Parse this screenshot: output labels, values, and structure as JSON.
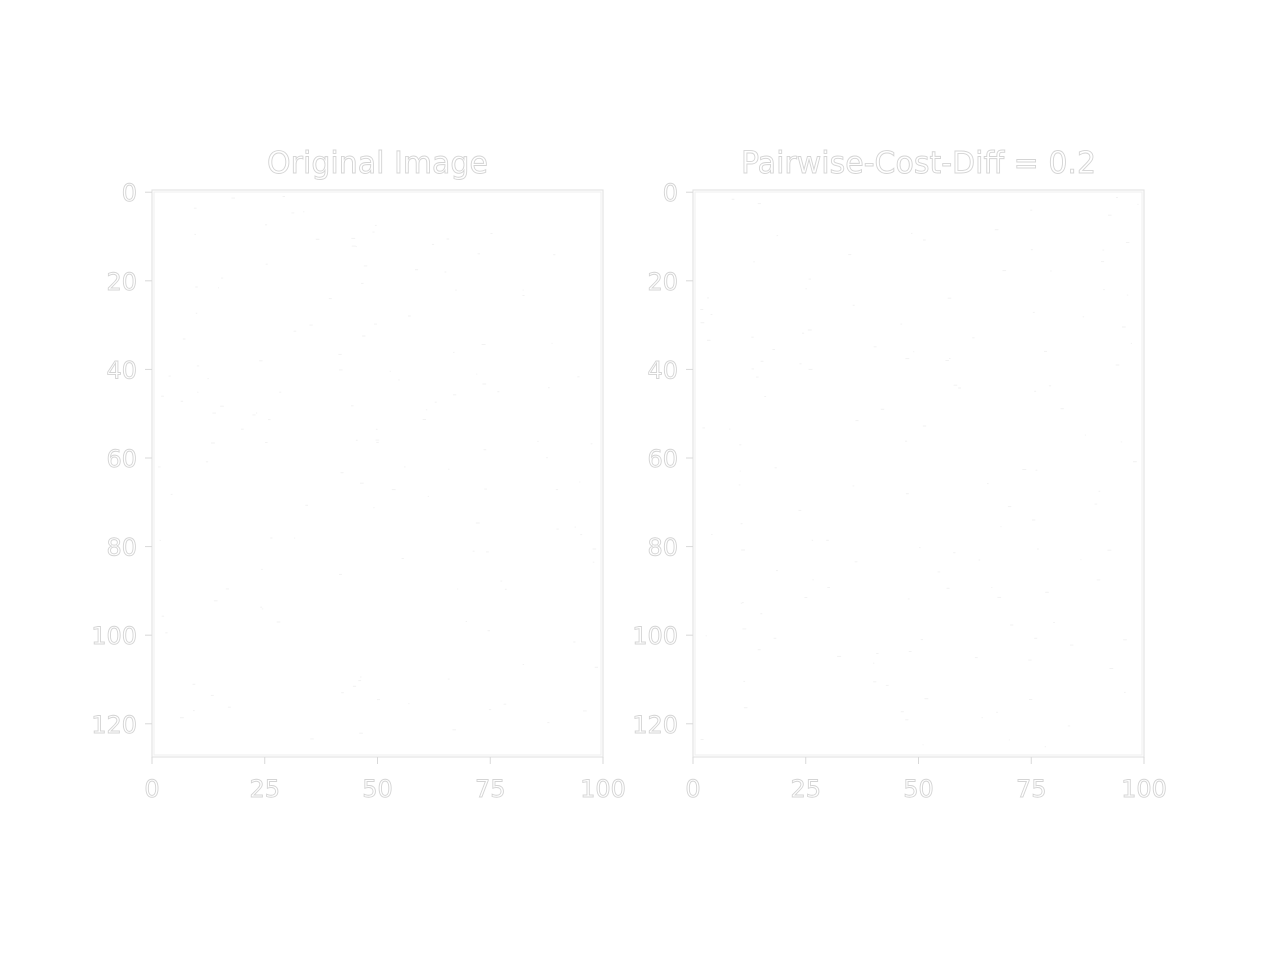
{
  "chart_data": [
    {
      "type": "heatmap",
      "title": "Original Image",
      "xlabel": "",
      "ylabel": "",
      "xlim": [
        0,
        100
      ],
      "ylim": [
        127.5,
        -0.5
      ],
      "y_axis_inverted": true,
      "xticks": [
        0,
        25,
        50,
        75,
        100
      ],
      "yticks": [
        0,
        20,
        40,
        60,
        80,
        100,
        120
      ],
      "xtick_labels": [
        "0",
        "25",
        "50",
        "75",
        "100"
      ],
      "ytick_labels": [
        "0",
        "20",
        "40",
        "60",
        "80",
        "100",
        "120"
      ],
      "grid": false,
      "legend": "none",
      "content": "near-white image, pixel values not readable"
    },
    {
      "type": "heatmap",
      "title": "Pairwise-Cost-Diff = 0.2",
      "xlabel": "",
      "ylabel": "",
      "xlim": [
        0,
        100
      ],
      "ylim": [
        127.5,
        -0.5
      ],
      "y_axis_inverted": true,
      "xticks": [
        0,
        25,
        50,
        75,
        100
      ],
      "yticks": [
        0,
        20,
        40,
        60,
        80,
        100,
        120
      ],
      "xtick_labels": [
        "0",
        "25",
        "50",
        "75",
        "100"
      ],
      "ytick_labels": [
        "0",
        "20",
        "40",
        "60",
        "80",
        "100",
        "120"
      ],
      "grid": false,
      "legend": "none",
      "content": "near-white image, pixel values not readable"
    }
  ],
  "colors": {
    "background": "#ffffff",
    "axis_frame": "#e4e4e4",
    "text_outline": "#d4d4d4"
  }
}
